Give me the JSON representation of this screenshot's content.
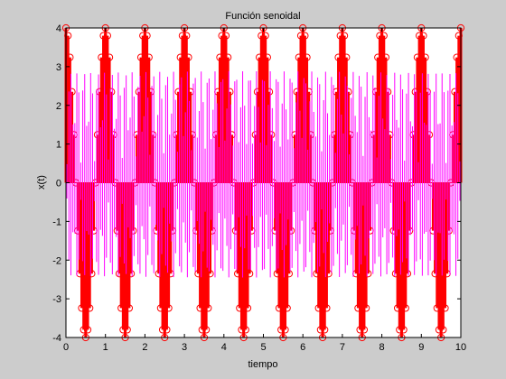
{
  "chart_data": {
    "type": "line",
    "title": "Función senoidal",
    "xlabel": "tiempo",
    "ylabel": "x(t)",
    "xlim": [
      0,
      10
    ],
    "ylim": [
      -4,
      4
    ],
    "x_ticks": [
      0,
      1,
      2,
      3,
      4,
      5,
      6,
      7,
      8,
      9,
      10
    ],
    "y_ticks": [
      -4,
      -3,
      -2,
      -1,
      0,
      1,
      2,
      3,
      4
    ],
    "x_tick_labels": [
      "0",
      "1",
      "2",
      "3",
      "4",
      "5",
      "6",
      "7",
      "8",
      "9",
      "10"
    ],
    "y_tick_labels": [
      "-4",
      "-3",
      "-2",
      "-1",
      "0",
      "1",
      "2",
      "3",
      "4"
    ],
    "grid": false,
    "legend": "none",
    "series": [
      {
        "style": "stem",
        "color": "#ff0000",
        "marker": "circle",
        "sample_period": 0.05,
        "x_range": [
          0,
          10
        ],
        "sampled_levels": [
          4.0,
          3.8,
          3.24,
          2.35,
          1.24,
          0,
          -1.24,
          -2.35,
          -3.24,
          -3.8,
          -4.0
        ],
        "amplitude": 4
      },
      {
        "style": "line",
        "color": "#ff00ff",
        "amplitude": 4,
        "x_range": [
          0,
          10
        ]
      }
    ]
  },
  "colors": {
    "background": "#cccccc",
    "axes_background": "#ffffff",
    "stem": "#ff0000",
    "continuous": "#ff00ff"
  }
}
